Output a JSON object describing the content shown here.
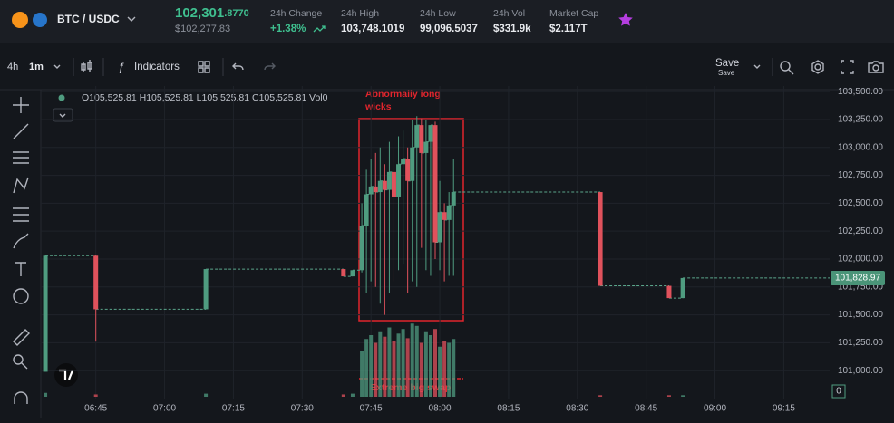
{
  "header": {
    "pair": "BTC / USDC",
    "price_main": "102,301",
    "price_frac": ".8770",
    "price_usd": "$102,277.83",
    "stats": [
      {
        "label": "24h Change",
        "value": "+1.38%"
      },
      {
        "label": "24h High",
        "value": "103,748.1019"
      },
      {
        "label": "24h Low",
        "value": "99,096.5037"
      },
      {
        "label": "24h Vol",
        "value": "$331.9k"
      },
      {
        "label": "Market Cap",
        "value": "$2.117T"
      }
    ]
  },
  "toolbar": {
    "interval": "4h",
    "interval_active": "1m",
    "indicators": "Indicators",
    "save": "Save",
    "save_sub": "Save"
  },
  "chart_data": {
    "type": "candlestick",
    "legend_text": "O105,525.81 H105,525.81 L105,525.81 C105,525.81 Vol0",
    "annotations": [
      "Abnormally long wicks",
      "Extreme big swap"
    ],
    "up_color": "#4f9c80",
    "down_color": "#e0525c",
    "x": [
      "06:34",
      "06:45",
      "07:09",
      "07:39",
      "07:41",
      "07:43",
      "07:44",
      "07:45",
      "07:46",
      "07:47",
      "07:48",
      "07:49",
      "07:50",
      "07:51",
      "07:52",
      "07:53",
      "07:54",
      "07:55",
      "07:56",
      "07:57",
      "07:58",
      "07:59",
      "08:00",
      "08:01",
      "08:02",
      "08:03",
      "08:35",
      "08:50",
      "08:53"
    ],
    "open": [
      100990,
      102030,
      101550,
      101910,
      101845,
      101900,
      102300,
      102580,
      102650,
      102600,
      102700,
      102620,
      102780,
      102560,
      102850,
      102900,
      102700,
      103000,
      103200,
      102950,
      103050,
      103200,
      102150,
      102420,
      102350,
      102480,
      102600,
      101760,
      101650
    ],
    "high": [
      102030,
      102030,
      101910,
      101910,
      101900,
      102500,
      102800,
      102900,
      102950,
      103000,
      102850,
      103050,
      103000,
      103100,
      103150,
      103000,
      103250,
      103280,
      103260,
      103250,
      103200,
      103230,
      102700,
      102500,
      102600,
      102900,
      102600,
      101760,
      101830
    ],
    "low": [
      100990,
      101260,
      101550,
      101845,
      101845,
      101880,
      101700,
      101800,
      101750,
      101600,
      101500,
      101700,
      101800,
      101900,
      101950,
      101700,
      101800,
      101750,
      102100,
      101900,
      101850,
      102000,
      101900,
      101800,
      101850,
      101850,
      101760,
      101650,
      101650
    ],
    "close": [
      102030,
      101550,
      101910,
      101845,
      101900,
      102300,
      102580,
      102650,
      102600,
      102700,
      102620,
      102780,
      102560,
      102850,
      102900,
      102700,
      103000,
      103200,
      102950,
      103050,
      103200,
      102150,
      102420,
      102350,
      102480,
      102600,
      101760,
      101650,
      101830
    ],
    "volume": [
      5,
      3,
      4,
      3,
      4,
      60,
      75,
      80,
      70,
      85,
      78,
      90,
      72,
      82,
      88,
      76,
      95,
      92,
      70,
      85,
      80,
      88,
      65,
      72,
      70,
      75,
      2,
      2,
      2
    ],
    "xlim": [
      "06:33",
      "09:25"
    ],
    "xticks": [
      "06:45",
      "07:00",
      "07:15",
      "07:30",
      "07:45",
      "08:00",
      "08:15",
      "08:30",
      "08:45",
      "09:00",
      "09:15"
    ],
    "ylim": [
      100750,
      103550
    ],
    "yticks": [
      {
        "value": 101000,
        "label": "101,000.00"
      },
      {
        "value": 101250,
        "label": "101,250.00"
      },
      {
        "value": 101500,
        "label": "101,500.00"
      },
      {
        "value": 101750,
        "label": "101,750.00"
      },
      {
        "value": 102000,
        "label": "102,000.00"
      },
      {
        "value": 102250,
        "label": "102,250.00"
      },
      {
        "value": 102500,
        "label": "102,500.00"
      },
      {
        "value": 102750,
        "label": "102,750.00"
      },
      {
        "value": 103000,
        "label": "103,000.00"
      },
      {
        "value": 103250,
        "label": "103,250.00"
      },
      {
        "value": 103500,
        "label": "103,500.00"
      }
    ],
    "last_price": {
      "value": 101828.97,
      "label": "101,828.97"
    },
    "volume_lim": [
      0,
      100
    ],
    "volume_ticks": [
      0
    ],
    "grid": true
  }
}
